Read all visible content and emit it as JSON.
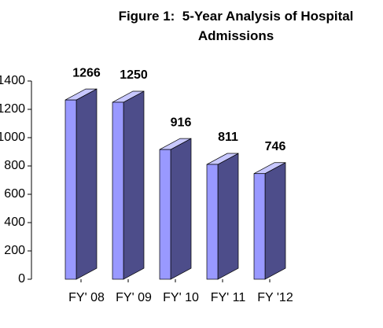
{
  "chart_data": {
    "type": "bar3d",
    "title": "Figure 1:  5-Year Analysis of Hospital Admissions",
    "categories": [
      "FY' 08",
      "FY' 09",
      "FY' 10",
      "FY' 11",
      "FY '12"
    ],
    "values": [
      1266,
      1250,
      916,
      811,
      746
    ],
    "color": "#9999ff",
    "side_color": "#4d4d8a",
    "top_color": "#c8c8ff",
    "ylim": [
      0,
      1400
    ],
    "yticks": [
      0,
      200,
      400,
      600,
      800,
      1000,
      1200,
      1400
    ]
  }
}
